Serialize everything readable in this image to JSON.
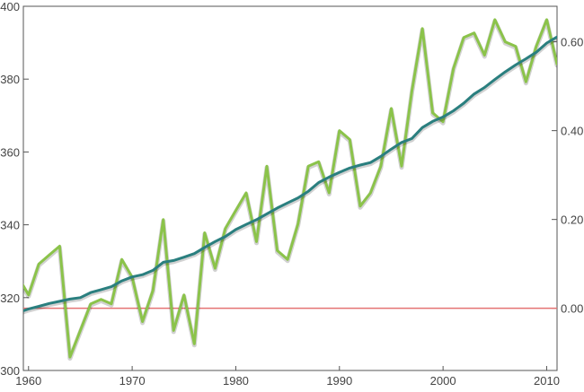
{
  "chart_data": {
    "type": "line",
    "title": "",
    "xlabel": "",
    "ylabel_left": "",
    "ylabel_right": "",
    "xlim": [
      1959.5,
      2011
    ],
    "ylim_left": [
      300,
      400
    ],
    "ylim_right": [
      -0.14,
      0.68
    ],
    "x_ticks": [
      1960,
      1970,
      1980,
      1990,
      2000,
      2010
    ],
    "x_tick_labels": [
      "1960",
      "1970",
      "1980",
      "1990",
      "2000",
      "2010"
    ],
    "y_left_ticks": [
      300,
      320,
      340,
      360,
      380,
      400
    ],
    "y_left_tick_labels": [
      "300",
      "320",
      "340",
      "360",
      "380",
      "400"
    ],
    "y_right_ticks": [
      0,
      0.2,
      0.4,
      0.6
    ],
    "y_right_tick_labels": [
      "0.00",
      "0.20",
      "0.40",
      "0.60"
    ],
    "reference_line": {
      "axis": "right",
      "value": 0.0,
      "color": "#e57373"
    },
    "grid": false,
    "legend": "none",
    "series": [
      {
        "axis": "left",
        "color": "#2a7f7f",
        "x": [
          1959,
          1960,
          1961,
          1962,
          1963,
          1964,
          1965,
          1966,
          1967,
          1968,
          1969,
          1970,
          1971,
          1972,
          1973,
          1974,
          1975,
          1976,
          1977,
          1978,
          1979,
          1980,
          1981,
          1982,
          1983,
          1984,
          1985,
          1986,
          1987,
          1988,
          1989,
          1990,
          1991,
          1992,
          1993,
          1994,
          1995,
          1996,
          1997,
          1998,
          1999,
          2000,
          2001,
          2002,
          2003,
          2004,
          2005,
          2006,
          2007,
          2008,
          2009,
          2010,
          2011
        ],
        "values": [
          315.9,
          316.9,
          317.6,
          318.4,
          319.0,
          319.6,
          320.0,
          321.4,
          322.2,
          323.0,
          324.6,
          325.7,
          326.3,
          327.5,
          329.7,
          330.2,
          331.1,
          332.1,
          333.8,
          335.4,
          336.8,
          338.7,
          340.1,
          341.4,
          343.0,
          344.6,
          346.0,
          347.4,
          349.2,
          351.6,
          353.1,
          354.4,
          355.6,
          356.4,
          357.1,
          358.8,
          360.8,
          362.6,
          363.7,
          366.7,
          368.4,
          369.6,
          371.3,
          373.4,
          375.9,
          377.7,
          379.9,
          382.0,
          383.9,
          385.6,
          387.4,
          389.9,
          391.6
        ]
      },
      {
        "axis": "right",
        "color": "#8bc34a",
        "x": [
          1959,
          1960,
          1961,
          1962,
          1963,
          1964,
          1965,
          1966,
          1967,
          1968,
          1969,
          1970,
          1971,
          1972,
          1973,
          1974,
          1975,
          1976,
          1977,
          1978,
          1979,
          1980,
          1981,
          1982,
          1983,
          1984,
          1985,
          1986,
          1987,
          1988,
          1989,
          1990,
          1991,
          1992,
          1993,
          1994,
          1995,
          1996,
          1997,
          1998,
          1999,
          2000,
          2001,
          2002,
          2003,
          2004,
          2005,
          2006,
          2007,
          2008,
          2009,
          2010,
          2011
        ],
        "values": [
          0.07,
          0.03,
          0.1,
          0.12,
          0.14,
          -0.11,
          -0.05,
          0.01,
          0.02,
          0.01,
          0.11,
          0.07,
          -0.03,
          0.04,
          0.2,
          -0.05,
          0.03,
          -0.08,
          0.17,
          0.09,
          0.18,
          0.22,
          0.26,
          0.15,
          0.32,
          0.13,
          0.11,
          0.19,
          0.32,
          0.33,
          0.26,
          0.4,
          0.38,
          0.23,
          0.26,
          0.32,
          0.45,
          0.32,
          0.49,
          0.63,
          0.44,
          0.42,
          0.54,
          0.61,
          0.62,
          0.57,
          0.65,
          0.6,
          0.59,
          0.51,
          0.59,
          0.65,
          0.55
        ]
      }
    ]
  }
}
